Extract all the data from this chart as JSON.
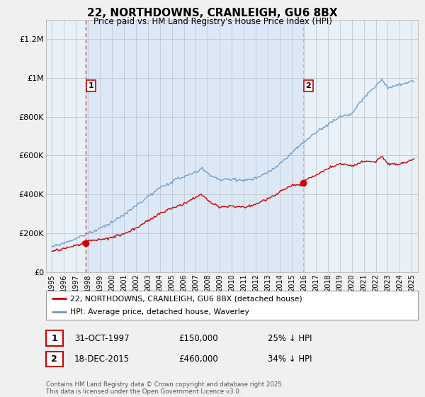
{
  "title": "22, NORTHDOWNS, CRANLEIGH, GU6 8BX",
  "subtitle": "Price paid vs. HM Land Registry's House Price Index (HPI)",
  "legend_line1": "22, NORTHDOWNS, CRANLEIGH, GU6 8BX (detached house)",
  "legend_line2": "HPI: Average price, detached house, Waverley",
  "annotation1_label": "1",
  "annotation1_date": "31-OCT-1997",
  "annotation1_price": "£150,000",
  "annotation1_hpi": "25% ↓ HPI",
  "annotation1_year": 1997.83,
  "annotation1_value": 150000,
  "annotation2_label": "2",
  "annotation2_date": "18-DEC-2015",
  "annotation2_price": "£460,000",
  "annotation2_hpi": "34% ↓ HPI",
  "annotation2_year": 2015.96,
  "annotation2_value": 460000,
  "ylabel_ticks": [
    "£0",
    "£200K",
    "£400K",
    "£600K",
    "£800K",
    "£1M",
    "£1.2M"
  ],
  "ytick_values": [
    0,
    200000,
    400000,
    600000,
    800000,
    1000000,
    1200000
  ],
  "ylim": [
    0,
    1300000
  ],
  "xlim_start": 1994.5,
  "xlim_end": 2025.5,
  "background_color": "#f0f0f0",
  "plot_bg_color": "#e8f0f8",
  "shade_color": "#dce8f5",
  "red_color": "#cc0000",
  "blue_color": "#6699cc",
  "vline1_color": "#cc0000",
  "vline2_color": "#aabbcc",
  "footnote": "Contains HM Land Registry data © Crown copyright and database right 2025.\nThis data is licensed under the Open Government Licence v3.0."
}
